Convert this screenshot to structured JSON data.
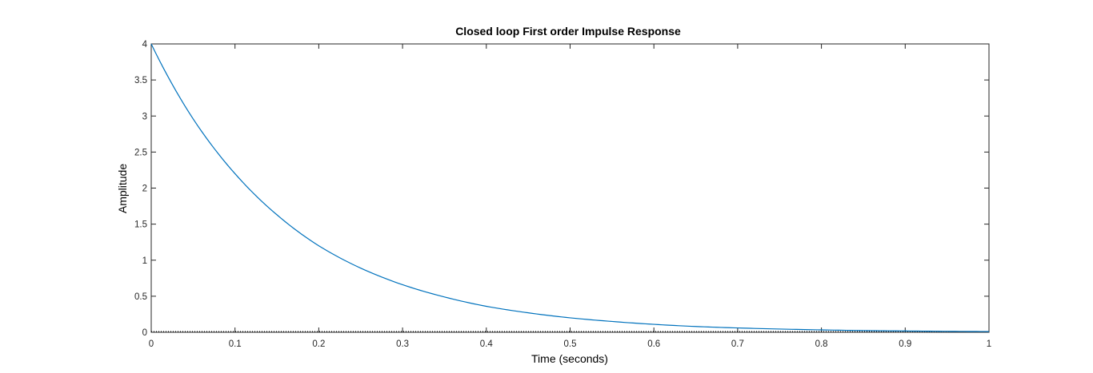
{
  "chart_data": {
    "type": "line",
    "title": "Closed loop First order Impulse Response",
    "xlabel": "Time (seconds)",
    "ylabel": "Amplitude",
    "xlim": [
      0,
      1
    ],
    "ylim": [
      0,
      4
    ],
    "x_ticks": [
      "0",
      "0.1",
      "0.2",
      "0.3",
      "0.4",
      "0.5",
      "0.6",
      "0.7",
      "0.8",
      "0.9",
      "1"
    ],
    "y_ticks": [
      "0",
      "0.5",
      "1",
      "1.5",
      "2",
      "2.5",
      "3",
      "3.5",
      "4"
    ],
    "grid": false,
    "box": true,
    "series": [
      {
        "color": "#0072BD",
        "x": [
          0,
          0.05,
          0.1,
          0.15,
          0.2,
          0.25,
          0.3,
          0.35,
          0.4,
          0.45,
          0.5,
          0.55,
          0.6,
          0.65,
          0.7,
          0.75,
          0.8,
          0.85,
          0.9,
          0.95,
          1.0
        ],
        "values": [
          4.0,
          2.96,
          2.2,
          1.63,
          1.2,
          0.89,
          0.66,
          0.49,
          0.36,
          0.27,
          0.2,
          0.15,
          0.11,
          0.08,
          0.06,
          0.045,
          0.033,
          0.024,
          0.018,
          0.013,
          0.01
        ]
      }
    ],
    "zero_line": {
      "y": 0,
      "style": "dotted",
      "color": "#000000"
    }
  }
}
